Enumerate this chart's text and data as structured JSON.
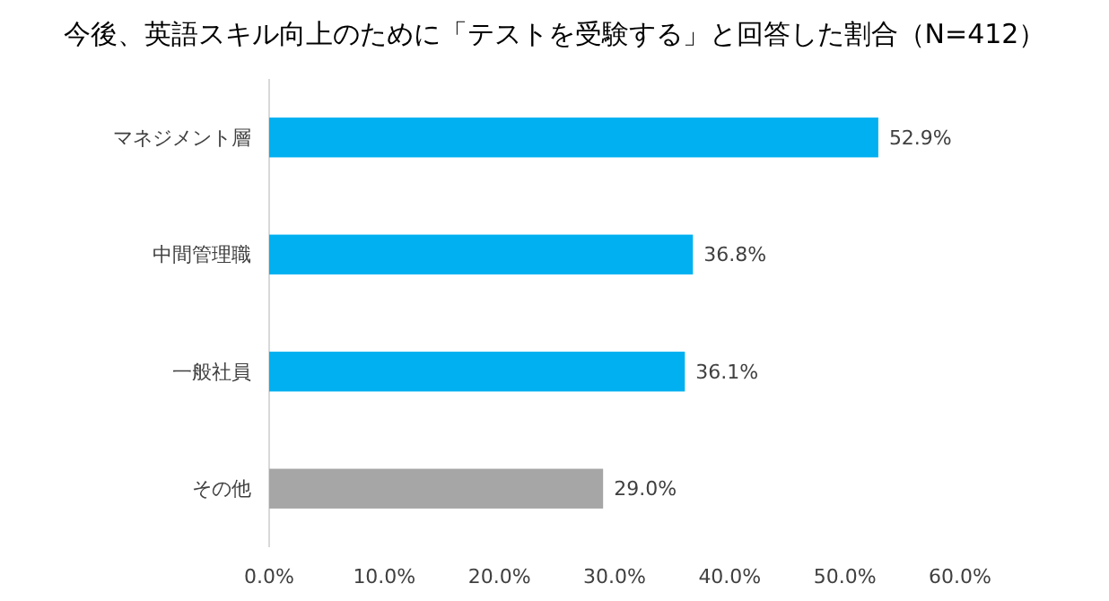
{
  "chart_data": {
    "type": "bar",
    "orientation": "horizontal",
    "title": "今後、英語スキル向上のために「テストを受験する」と回答した割合（N=412）",
    "categories": [
      "マネジメント層",
      "中間管理職",
      "一般社員",
      "その他"
    ],
    "values": [
      52.9,
      36.8,
      36.1,
      29.0
    ],
    "colors": [
      "#00b0f0",
      "#00b0f0",
      "#00b0f0",
      "#a6a6a6"
    ],
    "value_labels": [
      "52.9%",
      "36.8%",
      "36.1%",
      "29.0%"
    ],
    "xlim": [
      0,
      60
    ],
    "xticks": [
      {
        "value": 0,
        "label": "0.0%"
      },
      {
        "value": 10,
        "label": "10.0%"
      },
      {
        "value": 20,
        "label": "20.0%"
      },
      {
        "value": 30,
        "label": "30.0%"
      },
      {
        "value": 40,
        "label": "40.0%"
      },
      {
        "value": 50,
        "label": "50.0%"
      },
      {
        "value": 60,
        "label": "60.0%"
      }
    ],
    "grid": false
  }
}
